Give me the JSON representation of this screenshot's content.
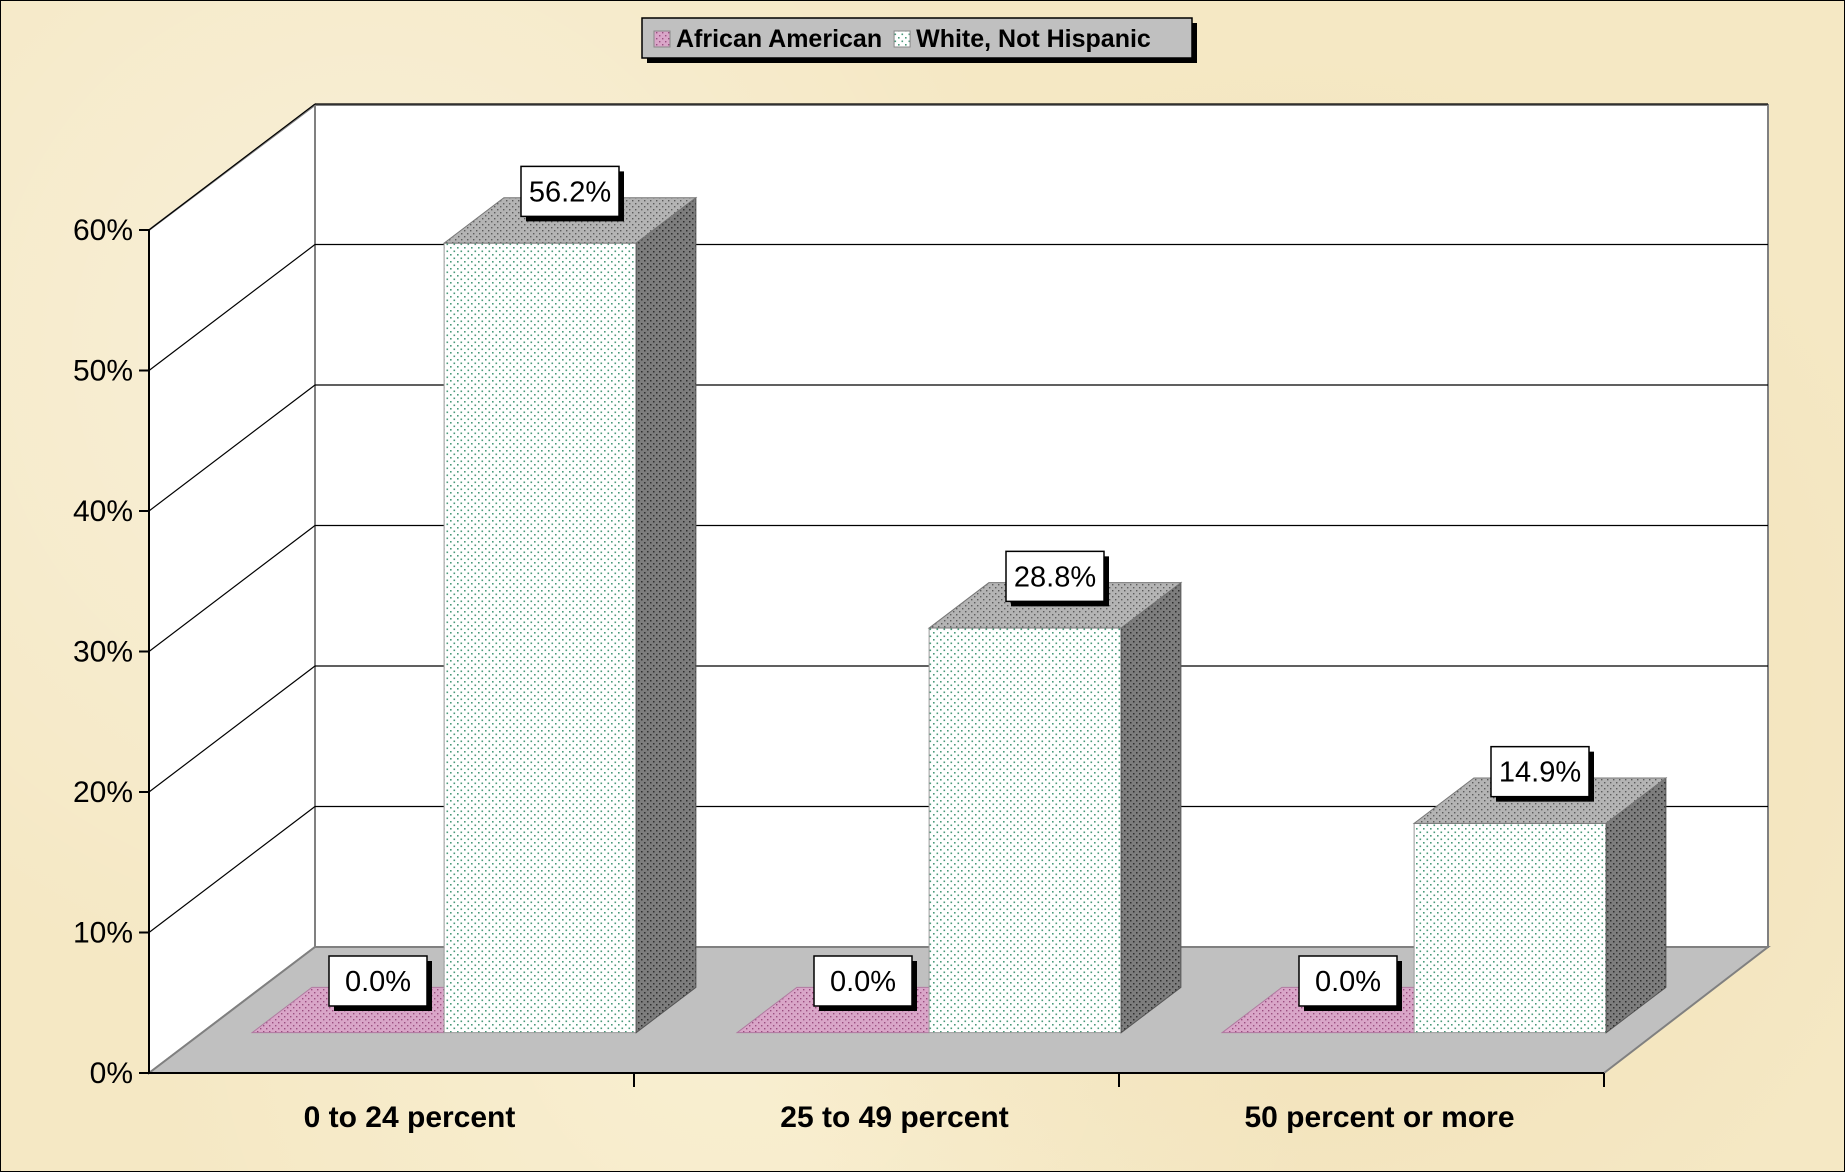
{
  "chart_data": {
    "type": "bar",
    "title": "",
    "xlabel": "",
    "ylabel": "",
    "categories": [
      "0 to 24 percent",
      "25 to 49 percent",
      "50 percent or more"
    ],
    "series": [
      {
        "name": "African American",
        "values": [
          0.0,
          0.0,
          0.0
        ],
        "labels": [
          "0.0%",
          "0.0%",
          "0.0%"
        ],
        "color": "#cc99cc"
      },
      {
        "name": "White, Not Hispanic",
        "values": [
          56.2,
          28.8,
          14.9
        ],
        "labels": [
          "56.2%",
          "28.8%",
          "14.9%"
        ],
        "color": "#ffffff"
      }
    ],
    "ylim": [
      0,
      60
    ],
    "yticks": [
      0,
      10,
      20,
      30,
      40,
      50,
      60
    ],
    "ytick_labels": [
      "0%",
      "10%",
      "20%",
      "30%",
      "40%",
      "50%",
      "60%"
    ],
    "grid": true,
    "legend": "top-center",
    "three_d": true
  }
}
